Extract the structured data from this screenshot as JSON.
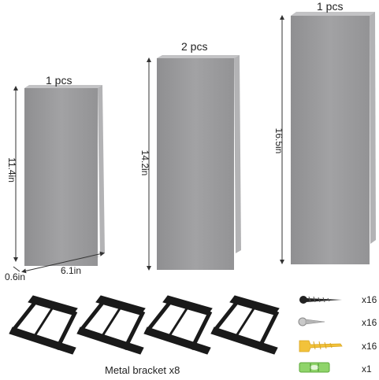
{
  "shelves": [
    {
      "quantity_label": "1 pcs",
      "height_label": "11.4in",
      "width_label": "6.1in",
      "depth_label": "0.6in"
    },
    {
      "quantity_label": "2 pcs",
      "height_label": "14.2in"
    },
    {
      "quantity_label": "1 pcs",
      "height_label": "16.5in"
    }
  ],
  "accessories": {
    "brackets_caption": "Metal bracket x8",
    "items": [
      {
        "icon": "wood-screw-icon",
        "count": "x16"
      },
      {
        "icon": "short-screw-icon",
        "count": "x16"
      },
      {
        "icon": "wall-anchor-icon",
        "count": "x16"
      },
      {
        "icon": "spirit-level-icon",
        "count": "x1"
      }
    ]
  },
  "colors": {
    "board": "#9a9a9c",
    "board_side": "#b9b9bb",
    "bracket": "#1a1a1a",
    "anchor": "#f2c23a",
    "level": "#8fd46a"
  }
}
